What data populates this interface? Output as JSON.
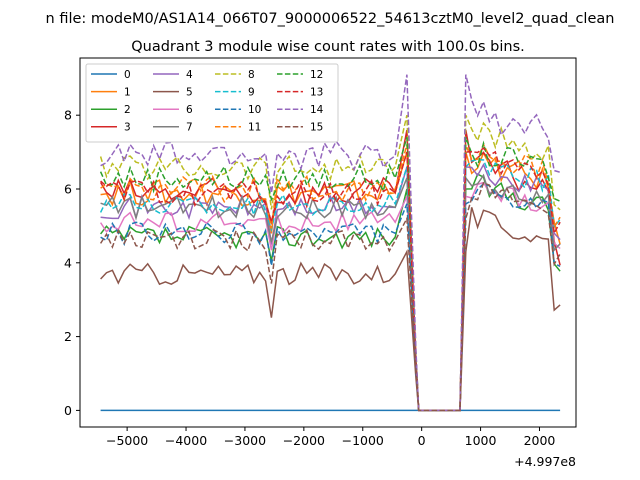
{
  "chart_data": {
    "type": "line",
    "suptitle": "n file: modeM0/AS1A14_066T07_9000006522_54613cztM0_level2_quad_clean",
    "title": "Quadrant 3 module wise count rates with 100.0s bins.",
    "xlabel": "",
    "ylabel": "",
    "offset_label": "+4.997e8",
    "xlim": [
      -5800,
      2620
    ],
    "ylim": [
      -0.45,
      9.55
    ],
    "x_ticks": [
      -5000,
      -4000,
      -3000,
      -2000,
      -1000,
      0,
      1000,
      2000
    ],
    "x_tick_labels": [
      "−5000",
      "−4000",
      "−3000",
      "−2000",
      "−1000",
      "0",
      "1000",
      "2000"
    ],
    "y_ticks": [
      0,
      2,
      4,
      6,
      8
    ],
    "y_tick_labels": [
      "0",
      "2",
      "4",
      "6",
      "8"
    ],
    "grid": false,
    "legend_position": "top-left",
    "legend_columns": 4,
    "segments": [
      {
        "start": -5450,
        "end": -250,
        "step": 100
      },
      {
        "gap": [
          -150,
          650
        ],
        "flat_value": 0
      },
      {
        "start": 750,
        "end": 2350,
        "step": 100
      }
    ],
    "series": [
      {
        "name": "0",
        "color": "#1f77b4",
        "dash": "solid",
        "pre_level": 0.0,
        "pre_noise": 0.0,
        "post_start": 0.0,
        "post_end": 0.0,
        "peak": 0.0
      },
      {
        "name": "1",
        "color": "#ff7f0e",
        "dash": "solid",
        "pre_level": 5.9,
        "pre_noise": 0.35,
        "post_start": 6.8,
        "post_end": 4.8,
        "peak": 7.0
      },
      {
        "name": "2",
        "color": "#2ca02c",
        "dash": "solid",
        "pre_level": 4.7,
        "pre_noise": 0.3,
        "post_start": 6.2,
        "post_end": 4.0,
        "peak": 6.0
      },
      {
        "name": "3",
        "color": "#d62728",
        "dash": "solid",
        "pre_level": 5.9,
        "pre_noise": 0.4,
        "post_start": 6.8,
        "post_end": 4.2,
        "peak": 7.6
      },
      {
        "name": "4",
        "color": "#9467bd",
        "dash": "solid",
        "pre_level": 5.5,
        "pre_noise": 0.3,
        "post_start": 6.5,
        "post_end": 4.8,
        "peak": 6.6
      },
      {
        "name": "5",
        "color": "#8c564b",
        "dash": "solid",
        "pre_level": 3.7,
        "pre_noise": 0.3,
        "post_start": 5.3,
        "post_end": 3.0,
        "peak": 4.3
      },
      {
        "name": "6",
        "color": "#e377c2",
        "dash": "solid",
        "pre_level": 5.1,
        "pre_noise": 0.3,
        "post_start": 6.0,
        "post_end": 4.5,
        "peak": 5.8
      },
      {
        "name": "7",
        "color": "#7f7f7f",
        "dash": "solid",
        "pre_level": 5.5,
        "pre_noise": 0.3,
        "post_start": 6.2,
        "post_end": 4.6,
        "peak": 6.3
      },
      {
        "name": "8",
        "color": "#bcbd22",
        "dash": "dashed",
        "pre_level": 6.6,
        "pre_noise": 0.35,
        "post_start": 7.6,
        "post_end": 5.5,
        "peak": 8.0
      },
      {
        "name": "9",
        "color": "#17becf",
        "dash": "dashed",
        "pre_level": 5.6,
        "pre_noise": 0.3,
        "post_start": 6.6,
        "post_end": 5.2,
        "peak": 6.6
      },
      {
        "name": "10",
        "color": "#1f77b4",
        "dash": "dashed",
        "pre_level": 4.8,
        "pre_noise": 0.3,
        "post_start": 6.0,
        "post_end": 3.9,
        "peak": 5.6
      },
      {
        "name": "11",
        "color": "#ff7f0e",
        "dash": "dashed",
        "pre_level": 6.0,
        "pre_noise": 0.35,
        "post_start": 7.0,
        "post_end": 5.2,
        "peak": 7.2
      },
      {
        "name": "12",
        "color": "#2ca02c",
        "dash": "dashed",
        "pre_level": 6.3,
        "pre_noise": 0.35,
        "post_start": 7.0,
        "post_end": 5.6,
        "peak": 7.4
      },
      {
        "name": "13",
        "color": "#d62728",
        "dash": "dashed",
        "pre_level": 5.9,
        "pre_noise": 0.35,
        "post_start": 6.9,
        "post_end": 5.0,
        "peak": 7.0
      },
      {
        "name": "14",
        "color": "#9467bd",
        "dash": "dashed",
        "pre_level": 6.9,
        "pre_noise": 0.4,
        "post_start": 8.1,
        "post_end": 6.3,
        "peak": 9.1
      },
      {
        "name": "15",
        "color": "#8c564b",
        "dash": "dashed",
        "pre_level": 4.6,
        "pre_noise": 0.3,
        "post_start": 6.0,
        "post_end": 4.1,
        "peak": 5.2
      }
    ]
  }
}
